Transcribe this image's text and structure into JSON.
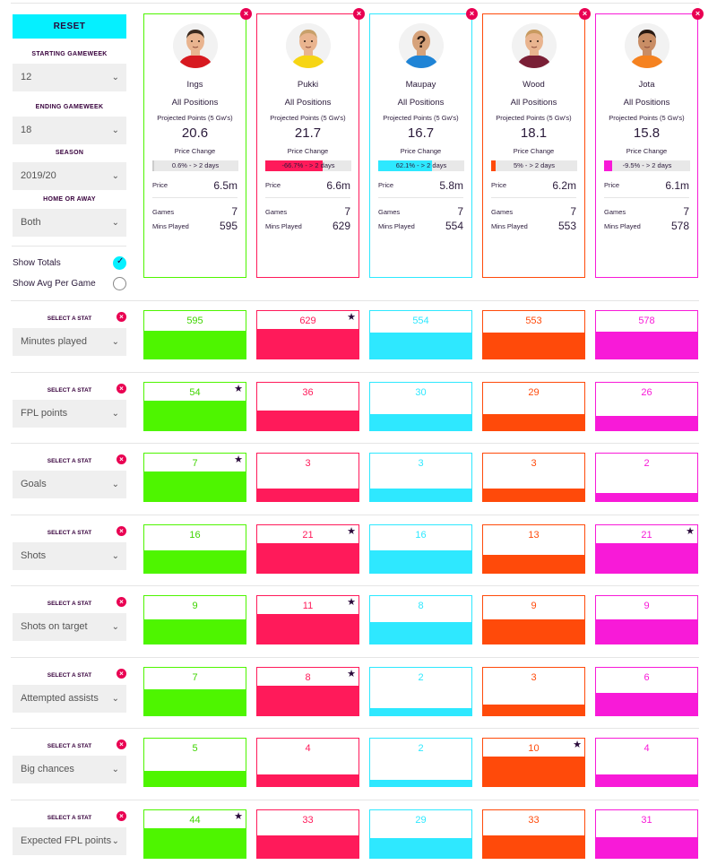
{
  "controls": {
    "reset_label": "RESET",
    "starting_gameweek": {
      "label": "STARTING GAMEWEEK",
      "value": "12"
    },
    "ending_gameweek": {
      "label": "ENDING GAMEWEEK",
      "value": "18"
    },
    "season": {
      "label": "SEASON",
      "value": "2019/20"
    },
    "home_away": {
      "label": "HOME OR AWAY",
      "value": "Both"
    },
    "show_totals": {
      "label": "Show Totals",
      "selected": true
    },
    "show_avg": {
      "label": "Show Avg Per Game",
      "selected": false
    }
  },
  "labels": {
    "projected": "Projected Points (5 Gw's)",
    "price_change": "Price Change",
    "price": "Price",
    "games": "Games",
    "mins": "Mins Played",
    "select_stat": "SELECT A STAT"
  },
  "colors": {
    "green": "#4ef500",
    "red": "#ff1a5a",
    "cyan": "#2ee8ff",
    "orange": "#ff4a0a",
    "magenta": "#f81ad8",
    "accent": "#05f0ff",
    "close": "#e90052"
  },
  "players": [
    {
      "name": "Ings",
      "position": "All Positions",
      "projected": "20.6",
      "price_change_text": "0.6% - > 2 days",
      "price_change_fill": 0.01,
      "price": "6.5m",
      "games": "7",
      "mins": "595",
      "color": "#4ef500",
      "shirt": "#d71920",
      "skin": "#e9b48f",
      "hair": "#3b2a1e"
    },
    {
      "name": "Pukki",
      "position": "All Positions",
      "projected": "21.7",
      "price_change_text": "-66.7% - > 2 days",
      "price_change_fill": 0.67,
      "price": "6.6m",
      "games": "7",
      "mins": "629",
      "color": "#ff1a5a",
      "shirt": "#f6d514",
      "skin": "#e9b48f",
      "hair": "#c8a06a"
    },
    {
      "name": "Maupay",
      "position": "All Positions",
      "projected": "16.7",
      "price_change_text": "62.1% - > 2 days",
      "price_change_fill": 0.62,
      "price": "5.8m",
      "games": "7",
      "mins": "554",
      "color": "#2ee8ff",
      "shirt": "#1f84d6",
      "skin": "#d6a27a",
      "hair": "#d6a27a",
      "unknown": true
    },
    {
      "name": "Wood",
      "position": "All Positions",
      "projected": "18.1",
      "price_change_text": "5% - > 2 days",
      "price_change_fill": 0.05,
      "price": "6.2m",
      "games": "7",
      "mins": "553",
      "color": "#ff4a0a",
      "shirt": "#7a1f36",
      "skin": "#e9b48f",
      "hair": "#c89a60"
    },
    {
      "name": "Jota",
      "position": "All Positions",
      "projected": "15.8",
      "price_change_text": "-9.5% - > 2 days",
      "price_change_fill": 0.095,
      "price": "6.1m",
      "games": "7",
      "mins": "578",
      "color": "#f81ad8",
      "shirt": "#f58220",
      "skin": "#c98d65",
      "hair": "#2a1a12"
    }
  ],
  "stats": [
    {
      "name": "Minutes played",
      "values": [
        595,
        629,
        554,
        553,
        578
      ],
      "best": 1
    },
    {
      "name": "FPL points",
      "values": [
        54,
        36,
        30,
        29,
        26
      ],
      "best": 0
    },
    {
      "name": "Goals",
      "values": [
        7,
        3,
        3,
        3,
        2
      ],
      "best": 0
    },
    {
      "name": "Shots",
      "values": [
        16,
        21,
        16,
        13,
        21
      ],
      "best": [
        1,
        4
      ]
    },
    {
      "name": "Shots on target",
      "values": [
        9,
        11,
        8,
        9,
        9
      ],
      "best": 1
    },
    {
      "name": "Attempted assists",
      "values": [
        7,
        8,
        2,
        3,
        6
      ],
      "best": 1
    },
    {
      "name": "Big chances",
      "values": [
        5,
        4,
        2,
        10,
        4
      ],
      "best": 3
    },
    {
      "name": "Expected FPL points",
      "values": [
        44,
        33,
        29,
        33,
        31
      ],
      "best": 0
    }
  ]
}
